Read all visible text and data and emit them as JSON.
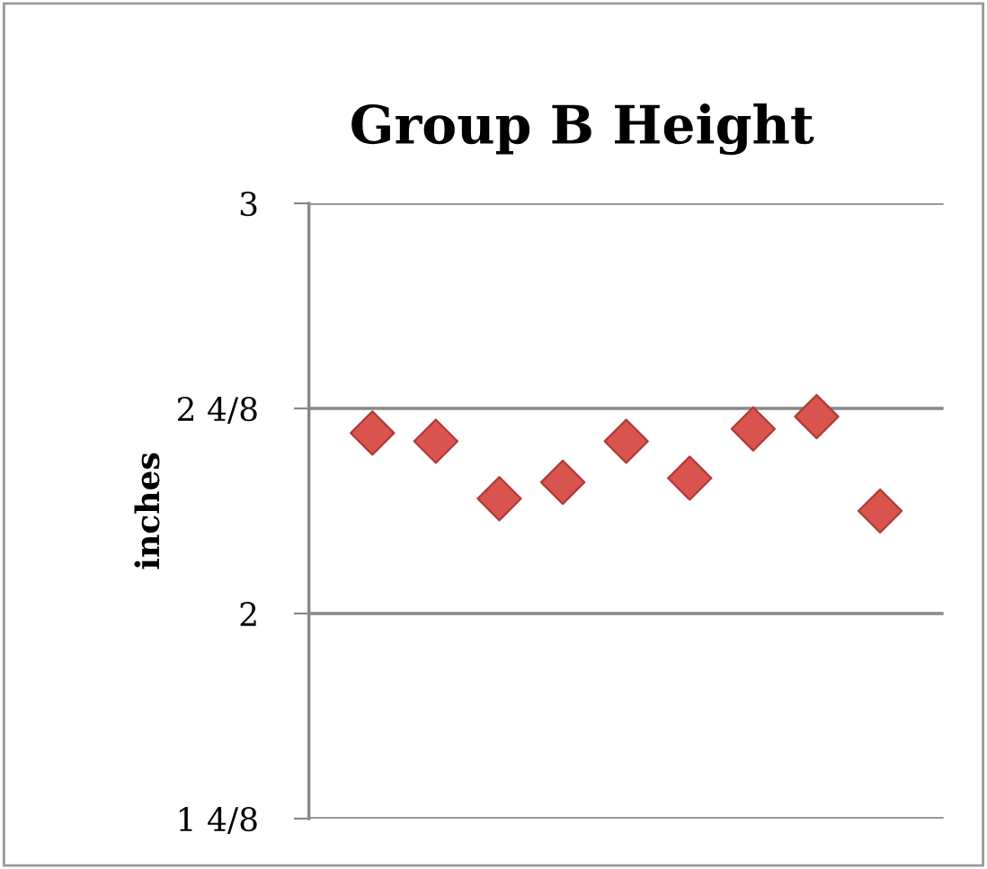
{
  "chart_data": {
    "type": "scatter",
    "title": "Group B Height",
    "ylabel": "inches",
    "categories": [
      null,
      null,
      null,
      null,
      null,
      null,
      null,
      null,
      null
    ],
    "series": [
      {
        "color": "#d9534f",
        "values": [
          2.44,
          2.42,
          2.28,
          2.32,
          2.42,
          2.33,
          2.45,
          2.48,
          2.25
        ]
      }
    ],
    "ylim": [
      1.5,
      3
    ],
    "yticks": [
      {
        "value": 1.5,
        "label": "1 4/8"
      },
      {
        "value": 2,
        "label": "2"
      },
      {
        "value": 2.5,
        "label": "2 4/8"
      },
      {
        "value": 3,
        "label": "3"
      }
    ],
    "grid": "y",
    "marker": "diamond",
    "tick_labels": "y"
  }
}
